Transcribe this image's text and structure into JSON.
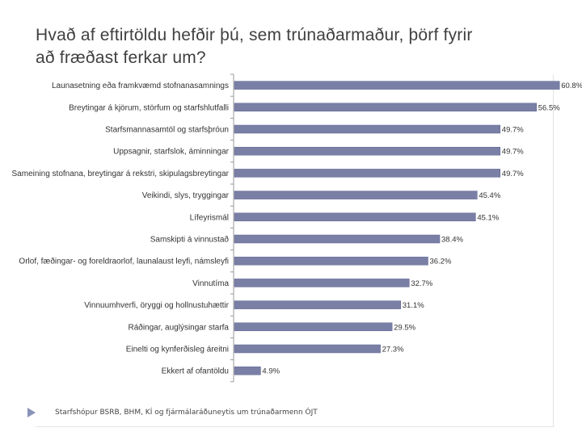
{
  "slide": {
    "title_line1": "Hvað af eftirtöldu hefðir þú, sem trúnaðarmaður, þörf fyrir",
    "title_line2": "að fræðast ferkar um?",
    "footer": "Starfshópur BSRB, BHM, KÍ og fjármálaráðuneytis um trúnaðarmenn   ÓJT",
    "bullet_icon": "triangle-bullet-icon",
    "colors": {
      "bar": "#7a7fa6",
      "bar_edge": "#5f6690",
      "axis": "#9a9a9a",
      "text": "#333333"
    }
  },
  "chart_data": {
    "type": "bar",
    "orientation": "horizontal",
    "title": "",
    "xlabel": "",
    "ylabel": "",
    "grid": false,
    "legend": "none",
    "xlim": [
      0,
      65
    ],
    "categories": [
      "Launasetning eða framkvæmd stofnanasamnings",
      "Breytingar á kjörum, störfum og starfshlutfalli",
      "Starfsmannasamtöl og starfsþróun",
      "Uppsagnir, starfslok, áminningar",
      "Sameining stofnana, breytingar á rekstri, skipulagsbreytingar",
      "Veikindi, slys, tryggingar",
      "Lífeyrismál",
      "Samskipti á vinnustað",
      "Orlof, fæðingar- og foreldraorlof, launalaust leyfi, námsleyfi",
      "Vinnutíma",
      "Vinnuumhverfi, öryggi og hollnustuhættir",
      "Ráðingar, auglýsingar starfa",
      "Einelti og kynferðisleg áreitni",
      "Ekkert af ofantöldu"
    ],
    "values": [
      60.8,
      56.5,
      49.7,
      49.7,
      49.7,
      45.4,
      45.1,
      38.4,
      36.2,
      32.7,
      31.1,
      29.5,
      27.3,
      4.9
    ],
    "value_labels": [
      "60.8%",
      "56.5%",
      "49.7%",
      "49.7%",
      "49.7%",
      "45.4%",
      "45.1%",
      "38.4%",
      "36.2%",
      "32.7%",
      "31.1%",
      "29.5%",
      "27.3%",
      "4.9%"
    ]
  }
}
